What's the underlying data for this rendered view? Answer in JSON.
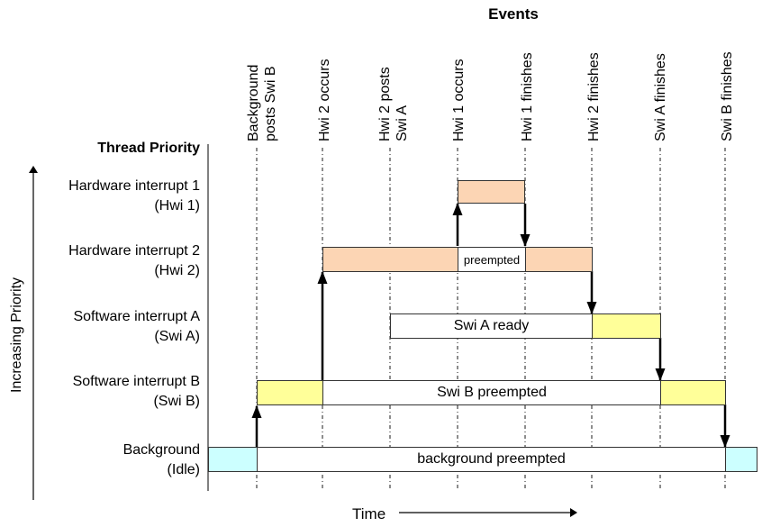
{
  "title": "Events",
  "priority_title": "Thread Priority",
  "y_axis_label": "Increasing Priority",
  "x_axis_label": "Time",
  "events": [
    {
      "line1": "Background",
      "line2": "posts Swi B"
    },
    {
      "line1": "Hwi 2 occurs",
      "line2": ""
    },
    {
      "line1": "Hwi 2 posts",
      "line2": "Swi A"
    },
    {
      "line1": "Hwi 1 occurs",
      "line2": ""
    },
    {
      "line1": "Hwi 1 finishes",
      "line2": ""
    },
    {
      "line1": "Hwi 2 finishes",
      "line2": ""
    },
    {
      "line1": "Swi A finishes",
      "line2": ""
    },
    {
      "line1": "Swi B finishes",
      "line2": ""
    }
  ],
  "threads": [
    {
      "name": "Hardware interrupt 1",
      "short": "(Hwi 1)"
    },
    {
      "name": "Hardware interrupt 2",
      "short": "(Hwi 2)"
    },
    {
      "name": "Software interrupt A",
      "short": "(Swi A)"
    },
    {
      "name": "Software interrupt B",
      "short": "(Swi B)"
    },
    {
      "name": "Background",
      "short": "(Idle)"
    }
  ],
  "bar_labels": {
    "hwi2_preempted": "preempted",
    "swi_a_ready": "Swi A ready",
    "swi_b_preempted": "Swi B preempted",
    "background_preempted": "background preempted"
  },
  "colors": {
    "hwi": "#fcd5b4",
    "swi": "#ffff99",
    "idle": "#ccffff",
    "waiting": "#ffffff"
  }
}
